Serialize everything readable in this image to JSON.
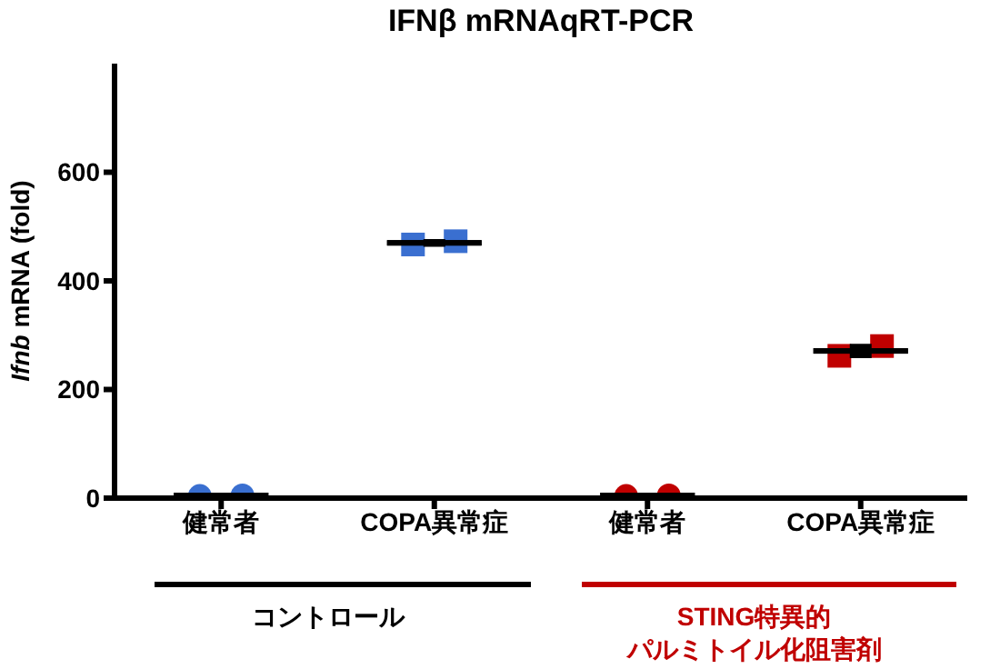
{
  "chart_data": {
    "type": "scatter",
    "title": "IFNβ mRNAqRT-PCR",
    "ylabel": "Ifnb mRNA (fold)",
    "categories": [
      "健常者",
      "COPA異常症",
      "健常者",
      "COPA異常症"
    ],
    "series": [
      {
        "marker": "circle",
        "values": [
          4,
          null,
          4,
          null
        ],
        "colors": [
          "#3a6fd0",
          null,
          "#c00000",
          null
        ]
      },
      {
        "marker": "circle",
        "values": [
          5,
          null,
          5,
          null
        ],
        "colors": [
          "#3a6fd0",
          null,
          "#c00000",
          null
        ]
      },
      {
        "marker": "square",
        "values": [
          null,
          467,
          null,
          262
        ],
        "colors": [
          null,
          "#3a6fd0",
          null,
          "#c00000"
        ]
      },
      {
        "marker": "square",
        "values": [
          null,
          473,
          null,
          280
        ],
        "colors": [
          null,
          "#3a6fd0",
          null,
          "#c00000"
        ]
      },
      {
        "type": "box",
        "color": "#000000",
        "boxes": [
          {
            "low": 4,
            "q1": 5,
            "median": 5,
            "q3": 5,
            "high": 6
          },
          {
            "low": 467,
            "q1": 470,
            "median": 470,
            "q3": 470,
            "high": 473
          },
          {
            "low": 4,
            "q1": 5,
            "median": 5,
            "q3": 5,
            "high": 6
          },
          {
            "low": 262,
            "q1": 271,
            "median": 271,
            "q3": 271,
            "high": 280
          }
        ]
      }
    ],
    "ylim": [
      0,
      800
    ],
    "yticks": [
      0,
      200,
      400,
      600
    ],
    "annotations": [
      "コントロール",
      "STING特異的",
      "パルミトイル化阻害剤"
    ]
  }
}
